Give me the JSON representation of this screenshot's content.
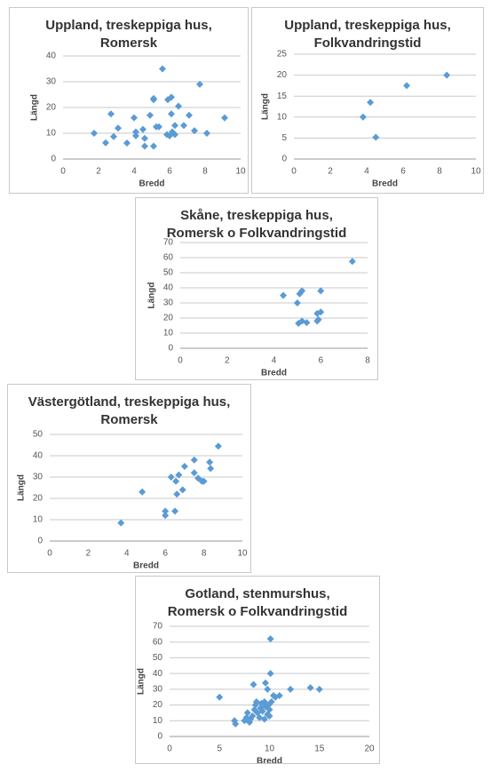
{
  "chart_data": [
    {
      "type": "scatter",
      "title": "Uppland, treskeppiga hus, Romersk",
      "x_label": "Bredd",
      "y_label": "Längd",
      "color": "#5b9bd5",
      "grid": true,
      "xlim": [
        0,
        10
      ],
      "xticks": [
        0,
        2,
        4,
        6,
        8,
        10
      ],
      "ylim": [
        0,
        40
      ],
      "yticks": [
        0,
        10,
        20,
        30,
        40
      ],
      "x": [
        1.75,
        2.4,
        2.7,
        2.85,
        3.1,
        3.6,
        4,
        4.1,
        4.1,
        4.5,
        4.6,
        4.6,
        4.9,
        5.1,
        5.1,
        5.1,
        5.25,
        5.4,
        5.6,
        6.1,
        5.9,
        6.1,
        5.85,
        6,
        6.15,
        6.3,
        6.3,
        6.5,
        6.8,
        7.1,
        7.4,
        7.7,
        8.1,
        9.1
      ],
      "y": [
        10,
        6.3,
        17.5,
        8.7,
        12,
        6.2,
        16,
        10.5,
        9,
        11.5,
        8,
        5,
        17,
        23.5,
        23,
        5,
        12.5,
        12.5,
        35,
        17.5,
        23,
        24,
        9.5,
        9,
        10.5,
        9.5,
        13,
        20.5,
        13,
        17,
        11,
        29,
        10,
        16
      ]
    },
    {
      "type": "scatter",
      "title": "Uppland, treskeppiga hus, Folkvandringstid",
      "x_label": "Bredd",
      "y_label": "Längd",
      "color": "#5b9bd5",
      "grid": true,
      "xlim": [
        0,
        10
      ],
      "xticks": [
        0,
        2,
        4,
        6,
        8,
        10
      ],
      "ylim": [
        0,
        25
      ],
      "yticks": [
        0,
        5,
        10,
        15,
        20,
        25
      ],
      "x": [
        3.8,
        4.2,
        4.5,
        6.2,
        8.4
      ],
      "y": [
        10,
        13.5,
        5.2,
        17.5,
        20
      ]
    },
    {
      "type": "scatter",
      "title": "Skåne, treskeppiga hus, Romersk o Folkvandringstid",
      "x_label": "Bredd",
      "y_label": "Längd",
      "color": "#5b9bd5",
      "grid": true,
      "xlim": [
        0,
        8
      ],
      "xticks": [
        0,
        2,
        4,
        6,
        8
      ],
      "ylim": [
        0,
        70
      ],
      "yticks": [
        0,
        10,
        20,
        30,
        40,
        50,
        60,
        70
      ],
      "x": [
        4.4,
        5,
        5.1,
        5.2,
        6,
        5.05,
        5.2,
        5.4,
        5.85,
        5.9,
        5.85,
        6,
        7.35
      ],
      "y": [
        35,
        30,
        36,
        38,
        38,
        16.5,
        18,
        17,
        23,
        19,
        18,
        24,
        57.5
      ]
    },
    {
      "type": "scatter",
      "title": "Västergötland, treskeppiga hus, Romersk",
      "x_label": "Bredd",
      "y_label": "Längd",
      "color": "#5b9bd5",
      "grid": true,
      "xlim": [
        0,
        10
      ],
      "xticks": [
        0,
        2,
        4,
        6,
        8,
        10
      ],
      "ylim": [
        0,
        50
      ],
      "yticks": [
        0,
        10,
        20,
        30,
        40,
        50
      ],
      "x": [
        3.7,
        4.8,
        6,
        6,
        6.5,
        6.3,
        6.55,
        6.7,
        6.6,
        6.9,
        7,
        7.5,
        7.5,
        7.7,
        7.9,
        8,
        8.3,
        8.35,
        8.75
      ],
      "y": [
        8.5,
        23,
        12,
        14,
        14,
        30,
        28,
        31,
        22,
        24,
        35,
        38,
        32,
        29.5,
        28,
        28,
        37,
        34,
        44.5
      ]
    },
    {
      "type": "scatter",
      "title": "Gotland, stenmurshus, Romersk o Folkvandringstid",
      "x_label": "Bredd",
      "y_label": "Längd",
      "color": "#5b9bd5",
      "grid": true,
      "xlim": [
        0,
        20
      ],
      "xticks": [
        0,
        5,
        10,
        15,
        20
      ],
      "ylim": [
        0,
        70
      ],
      "yticks": [
        0,
        10,
        20,
        30,
        40,
        50,
        60,
        70
      ],
      "x": [
        5,
        6.5,
        6.6,
        7.5,
        7.7,
        7.8,
        8,
        8.1,
        8.3,
        8.5,
        8.6,
        8.7,
        8.8,
        9,
        9.1,
        9.2,
        9.3,
        9.5,
        9.6,
        9.8,
        9.9,
        10,
        10.2,
        10.4,
        10.6,
        11,
        9.5,
        8.4,
        9.6,
        9.8,
        10.1,
        10.1,
        12.1,
        14.1,
        15,
        10
      ],
      "y": [
        25,
        10,
        8,
        10,
        12,
        15,
        9,
        11,
        13,
        17,
        20,
        22,
        15,
        12,
        18,
        21,
        16,
        22,
        19,
        14,
        20,
        17,
        22,
        26,
        25,
        26,
        11,
        33,
        34,
        30,
        40,
        62,
        30,
        31,
        30,
        13
      ]
    }
  ]
}
